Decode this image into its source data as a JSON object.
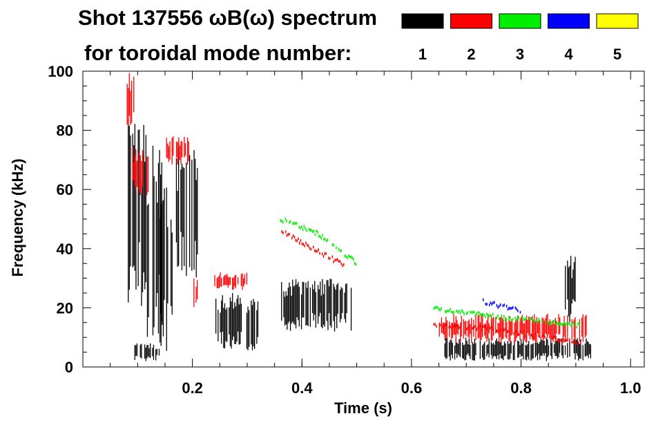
{
  "chart_data": {
    "type": "heatmap",
    "title_line1": "Shot 137556 ωB(ω) spectrum",
    "title_line2": "for toroidal mode number:",
    "xlabel": "Time (s)",
    "ylabel": "Frequency (kHz)",
    "xlim": [
      0.0,
      1.025
    ],
    "ylim": [
      0,
      100
    ],
    "x_ticks": [
      {
        "value": 0.2,
        "label": "0.2"
      },
      {
        "value": 0.4,
        "label": "0.4"
      },
      {
        "value": 0.6,
        "label": "0.6"
      },
      {
        "value": 0.8,
        "label": "0.8"
      },
      {
        "value": 1.0,
        "label": "1.0"
      }
    ],
    "y_ticks": [
      {
        "value": 0,
        "label": "0"
      },
      {
        "value": 20,
        "label": "20"
      },
      {
        "value": 40,
        "label": "40"
      },
      {
        "value": 60,
        "label": "60"
      },
      {
        "value": 80,
        "label": "80"
      },
      {
        "value": 100,
        "label": "100"
      }
    ],
    "legend": [
      {
        "mode": "1",
        "color": "#000000"
      },
      {
        "mode": "2",
        "color": "#ff0000"
      },
      {
        "mode": "3",
        "color": "#00ee00"
      },
      {
        "mode": "4",
        "color": "#0000ff"
      },
      {
        "mode": "5",
        "color": "#ffff00"
      }
    ],
    "regions": [
      {
        "mode": 1,
        "t": [
          0.08,
          0.115
        ],
        "f": [
          20,
          85
        ]
      },
      {
        "mode": 1,
        "t": [
          0.115,
          0.145
        ],
        "f": [
          10,
          75
        ]
      },
      {
        "mode": 1,
        "t": [
          0.14,
          0.165
        ],
        "f": [
          5,
          65
        ]
      },
      {
        "mode": 1,
        "t": [
          0.17,
          0.21
        ],
        "f": [
          30,
          75
        ]
      },
      {
        "mode": 1,
        "t": [
          0.09,
          0.14
        ],
        "f": [
          2,
          8
        ]
      },
      {
        "mode": 1,
        "t": [
          0.24,
          0.32
        ],
        "f": [
          5,
          25
        ]
      },
      {
        "mode": 1,
        "t": [
          0.36,
          0.49
        ],
        "f": [
          12,
          30
        ]
      },
      {
        "mode": 1,
        "t": [
          0.66,
          0.93
        ],
        "f": [
          2,
          10
        ]
      },
      {
        "mode": 1,
        "t": [
          0.88,
          0.9
        ],
        "f": [
          15,
          38
        ]
      },
      {
        "mode": 2,
        "t": [
          0.08,
          0.095
        ],
        "f": [
          80,
          100
        ]
      },
      {
        "mode": 2,
        "t": [
          0.09,
          0.12
        ],
        "f": [
          58,
          75
        ]
      },
      {
        "mode": 2,
        "t": [
          0.15,
          0.2
        ],
        "f": [
          68,
          78
        ]
      },
      {
        "mode": 2,
        "t": [
          0.2,
          0.21
        ],
        "f": [
          20,
          30
        ]
      },
      {
        "mode": 2,
        "t": [
          0.24,
          0.3
        ],
        "f": [
          26,
          32
        ]
      },
      {
        "mode": 2,
        "t": [
          0.65,
          0.92
        ],
        "f": [
          8,
          18
        ]
      }
    ],
    "ridges": [
      {
        "mode": 2,
        "points": [
          [
            0.36,
            46
          ],
          [
            0.42,
            40
          ],
          [
            0.48,
            34
          ]
        ]
      },
      {
        "mode": 3,
        "points": [
          [
            0.36,
            50
          ],
          [
            0.43,
            45
          ],
          [
            0.5,
            35
          ]
        ]
      },
      {
        "mode": 3,
        "points": [
          [
            0.64,
            20
          ],
          [
            0.75,
            17
          ],
          [
            0.91,
            14
          ]
        ]
      },
      {
        "mode": 2,
        "points": [
          [
            0.64,
            14
          ],
          [
            0.75,
            13
          ],
          [
            0.91,
            8
          ]
        ]
      },
      {
        "mode": 4,
        "points": [
          [
            0.73,
            22
          ],
          [
            0.8,
            19
          ]
        ]
      }
    ]
  }
}
